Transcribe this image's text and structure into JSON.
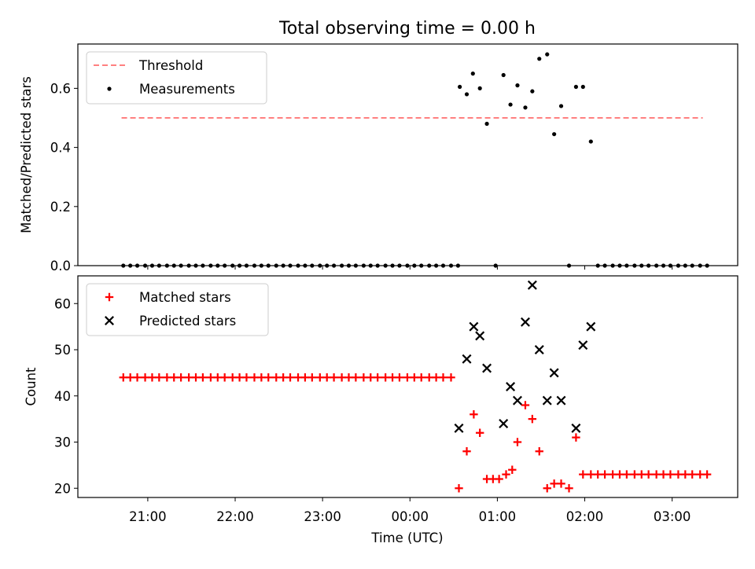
{
  "chart_data": {
    "title": "Total observing time = 0.00 h",
    "x_unit": "hours relative to 00:00 UTC",
    "xlim": [
      -3.8,
      3.75
    ],
    "x_ticks": [
      -3,
      -2,
      -1,
      0,
      1,
      2,
      3
    ],
    "x_tick_labels": [
      "21:00",
      "22:00",
      "23:00",
      "00:00",
      "01:00",
      "02:00",
      "03:00"
    ],
    "xlabel": "Time (UTC)",
    "panels": [
      {
        "type": "scatter",
        "ylabel": "Matched/Predicted stars",
        "ylim": [
          0,
          0.75
        ],
        "y_ticks": [
          0,
          0.2,
          0.4,
          0.6
        ],
        "y_tick_labels": [
          "0.0",
          "0.2",
          "0.4",
          "0.6"
        ],
        "legend_position": "top-left",
        "threshold": {
          "name": "Threshold",
          "value": 0.5,
          "x_range": [
            -3.3,
            3.35
          ],
          "color": "#ff8080",
          "style": "dashed"
        },
        "series": [
          {
            "name": "Measurements",
            "color": "#000000",
            "marker": "dot",
            "x": [
              -3.28,
              -3.2,
              -3.12,
              -3.03,
              -2.95,
              -2.87,
              -2.78,
              -2.7,
              -2.62,
              -2.53,
              -2.45,
              -2.37,
              -2.28,
              -2.2,
              -2.12,
              -2.03,
              -1.95,
              -1.87,
              -1.78,
              -1.7,
              -1.62,
              -1.53,
              -1.45,
              -1.37,
              -1.28,
              -1.2,
              -1.12,
              -1.03,
              -0.95,
              -0.87,
              -0.78,
              -0.7,
              -0.62,
              -0.53,
              -0.45,
              -0.37,
              -0.28,
              -0.2,
              -0.12,
              -0.03,
              0.05,
              0.13,
              0.22,
              0.3,
              0.38,
              0.47,
              0.55,
              0.57,
              0.65,
              0.72,
              0.8,
              0.88,
              0.98,
              1.07,
              1.15,
              1.23,
              1.32,
              1.4,
              1.48,
              1.57,
              1.65,
              1.73,
              1.82,
              1.9,
              1.98,
              2.07,
              2.15,
              2.23,
              2.32,
              2.4,
              2.48,
              2.57,
              2.65,
              2.73,
              2.82,
              2.9,
              2.98,
              3.07,
              3.15,
              3.23,
              3.32,
              3.4
            ],
            "y": [
              0,
              0,
              0,
              0,
              0,
              0,
              0,
              0,
              0,
              0,
              0,
              0,
              0,
              0,
              0,
              0,
              0,
              0,
              0,
              0,
              0,
              0,
              0,
              0,
              0,
              0,
              0,
              0,
              0,
              0,
              0,
              0,
              0,
              0,
              0,
              0,
              0,
              0,
              0,
              0,
              0,
              0,
              0,
              0,
              0,
              0,
              0,
              0.605,
              0.58,
              0.65,
              0.6,
              0.48,
              0,
              0.645,
              0.545,
              0.61,
              0.535,
              0.59,
              0.7,
              0.715,
              0.445,
              0.54,
              0,
              0.605,
              0.605,
              0.42,
              0,
              0,
              0,
              0,
              0,
              0,
              0,
              0,
              0,
              0,
              0,
              0,
              0,
              0,
              0,
              0
            ]
          }
        ]
      },
      {
        "type": "scatter",
        "ylabel": "Count",
        "ylim": [
          18,
          66
        ],
        "y_ticks": [
          20,
          30,
          40,
          50,
          60
        ],
        "y_tick_labels": [
          "20",
          "30",
          "40",
          "50",
          "60"
        ],
        "legend_position": "top-left",
        "series": [
          {
            "name": "Matched stars",
            "color": "#ff0000",
            "marker": "plus",
            "x": [
              -3.28,
              -3.2,
              -3.12,
              -3.03,
              -2.95,
              -2.87,
              -2.78,
              -2.7,
              -2.62,
              -2.53,
              -2.45,
              -2.37,
              -2.28,
              -2.2,
              -2.12,
              -2.03,
              -1.95,
              -1.87,
              -1.78,
              -1.7,
              -1.62,
              -1.53,
              -1.45,
              -1.37,
              -1.28,
              -1.2,
              -1.12,
              -1.03,
              -0.95,
              -0.87,
              -0.78,
              -0.7,
              -0.62,
              -0.53,
              -0.45,
              -0.37,
              -0.28,
              -0.2,
              -0.12,
              -0.03,
              0.05,
              0.13,
              0.22,
              0.3,
              0.38,
              0.47,
              0.56,
              0.65,
              0.73,
              0.8,
              0.88,
              0.95,
              1.02,
              1.1,
              1.17,
              1.23,
              1.32,
              1.4,
              1.48,
              1.57,
              1.65,
              1.73,
              1.82,
              1.9,
              1.98,
              2.07,
              2.15,
              2.23,
              2.32,
              2.4,
              2.48,
              2.57,
              2.65,
              2.73,
              2.82,
              2.9,
              2.98,
              3.07,
              3.15,
              3.23,
              3.32,
              3.4
            ],
            "y": [
              44,
              44,
              44,
              44,
              44,
              44,
              44,
              44,
              44,
              44,
              44,
              44,
              44,
              44,
              44,
              44,
              44,
              44,
              44,
              44,
              44,
              44,
              44,
              44,
              44,
              44,
              44,
              44,
              44,
              44,
              44,
              44,
              44,
              44,
              44,
              44,
              44,
              44,
              44,
              44,
              44,
              44,
              44,
              44,
              44,
              44,
              20,
              28,
              36,
              32,
              22,
              22,
              22,
              23,
              24,
              30,
              38,
              35,
              28,
              20,
              21,
              21,
              20,
              31,
              23,
              23,
              23,
              23,
              23,
              23,
              23,
              23,
              23,
              23,
              23,
              23,
              23,
              23,
              23,
              23,
              23,
              23
            ]
          },
          {
            "name": "Predicted stars",
            "color": "#000000",
            "marker": "x",
            "x": [
              0.56,
              0.65,
              0.73,
              0.8,
              0.88,
              1.07,
              1.15,
              1.23,
              1.32,
              1.4,
              1.48,
              1.57,
              1.65,
              1.73,
              1.9,
              1.98,
              2.07
            ],
            "y": [
              33,
              48,
              55,
              53,
              46,
              34,
              42,
              39,
              56,
              64,
              50,
              39,
              45,
              39,
              33,
              51,
              55
            ]
          }
        ]
      }
    ]
  }
}
